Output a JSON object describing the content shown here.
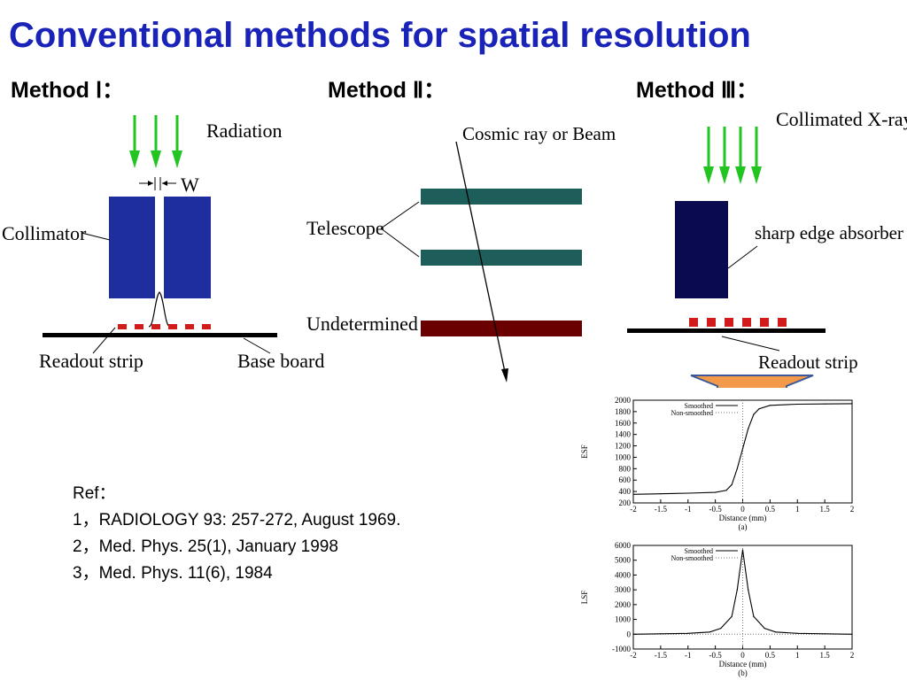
{
  "slide": {
    "title": "Conventional methods for spatial resolution"
  },
  "methods": [
    {
      "label": "Method Ⅰ："
    },
    {
      "label": "Method Ⅱ："
    },
    {
      "label": "Method Ⅲ："
    }
  ],
  "method1": {
    "radiation": "Radiation",
    "width_label": "W",
    "collimator": "Collimator",
    "readout_strip": "Readout strip",
    "base_board": "Base board"
  },
  "method2": {
    "cosmic": "Cosmic ray  or  Beam",
    "telescope": "Telescope",
    "undetermined": "Undetermined"
  },
  "method3": {
    "xray": "Collimated X-ray",
    "absorber": "sharp edge absorber",
    "readout_strip": "Readout strip"
  },
  "references": {
    "heading": "Ref：",
    "items": [
      "1，RADIOLOGY 93: 257-272, August 1969.",
      "2，Med. Phys. 25(1), January 1998",
      "3，Med. Phys. 11(6), 1984"
    ]
  },
  "colors": {
    "title": "#1a23b8",
    "arrow_green": "#22c422",
    "collimator_blue": "#1f2e9e",
    "telescope_teal": "#1e5e5a",
    "undetermined_red": "#6b0000",
    "absorber_navy": "#0a0a50",
    "strip_red": "#d21b1b",
    "down_arrow_orange": "#f39a4a"
  },
  "chart_data": [
    {
      "type": "line",
      "panel_label": "(a)",
      "xlabel": "Distance (mm)",
      "ylabel": "ESF",
      "xlim": [
        -2,
        2
      ],
      "ylim": [
        200,
        2000
      ],
      "xticks": [
        "-2",
        "-1.5",
        "-1",
        "-0.5",
        "0",
        "0.5",
        "1",
        "1.5",
        "2"
      ],
      "yticks": [
        "200",
        "400",
        "600",
        "800",
        "1000",
        "1200",
        "1400",
        "1600",
        "1800",
        "2000"
      ],
      "legend": [
        "Smoothed",
        "Non-smoothed"
      ],
      "series": [
        {
          "name": "Smoothed",
          "x": [
            -2,
            -1.5,
            -1,
            -0.5,
            -0.3,
            -0.2,
            -0.1,
            0,
            0.1,
            0.2,
            0.3,
            0.5,
            1,
            1.5,
            2
          ],
          "y": [
            350,
            360,
            370,
            385,
            420,
            520,
            800,
            1150,
            1500,
            1750,
            1850,
            1910,
            1930,
            1935,
            1940
          ]
        }
      ]
    },
    {
      "type": "line",
      "panel_label": "(b)",
      "xlabel": "Distance (mm)",
      "ylabel": "LSF",
      "xlim": [
        -2,
        2
      ],
      "ylim": [
        -1000,
        6000
      ],
      "xticks": [
        "-2",
        "-1.5",
        "-1",
        "-0.5",
        "0",
        "0.5",
        "1",
        "1.5",
        "2"
      ],
      "yticks": [
        "-1000",
        "0",
        "1000",
        "2000",
        "3000",
        "4000",
        "5000",
        "6000"
      ],
      "legend": [
        "Smoothed",
        "Non-smoothed"
      ],
      "series": [
        {
          "name": "Smoothed",
          "x": [
            -2,
            -1.5,
            -1,
            -0.6,
            -0.4,
            -0.2,
            -0.1,
            0,
            0.1,
            0.2,
            0.4,
            0.6,
            1,
            1.5,
            2
          ],
          "y": [
            0,
            30,
            60,
            150,
            400,
            1200,
            3000,
            5700,
            3000,
            1200,
            400,
            150,
            60,
            30,
            0
          ]
        }
      ]
    }
  ]
}
